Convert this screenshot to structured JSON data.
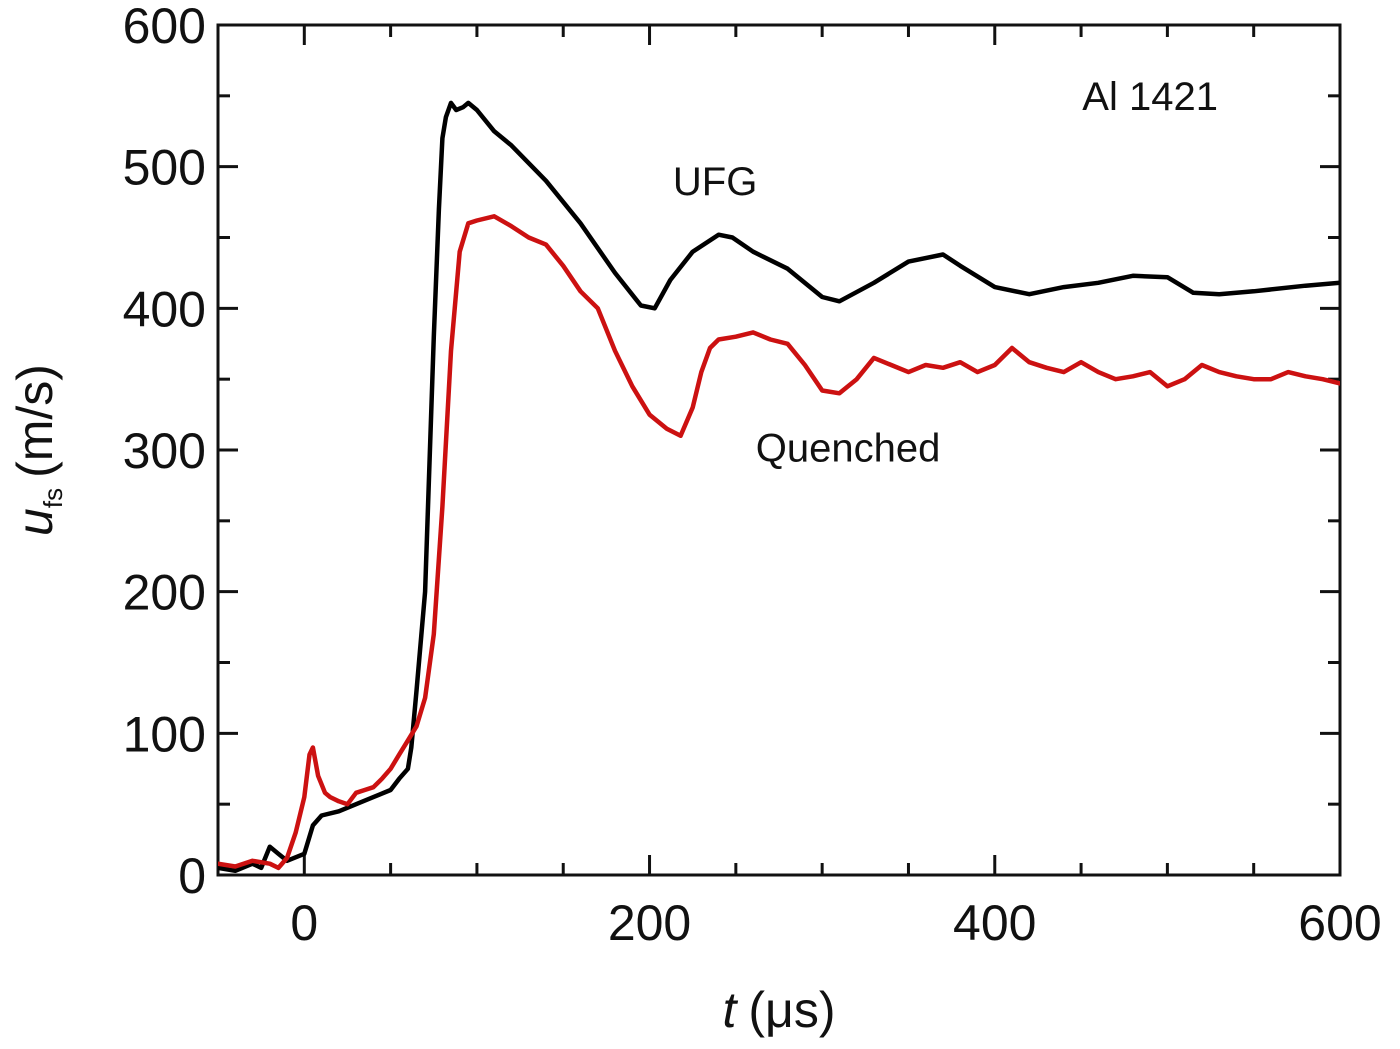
{
  "chart_data": {
    "type": "line",
    "title": "",
    "xlabel": "t",
    "xlabel_unit": "(μs)",
    "ylabel": "u",
    "ylabel_sub": "fs",
    "ylabel_unit": "(m/s)",
    "xlim": [
      -50,
      600
    ],
    "ylim": [
      0,
      600
    ],
    "x_ticks": [
      0,
      200,
      400,
      600
    ],
    "y_ticks": [
      0,
      100,
      200,
      300,
      400,
      500,
      600
    ],
    "x_minor_step": 50,
    "y_minor_step": 50,
    "grid": false,
    "annotations": [
      {
        "text": "Al 1421",
        "x": 490,
        "y": 540
      },
      {
        "text": "UFG",
        "x": 238,
        "y": 480
      },
      {
        "text": "Quenched",
        "x": 315,
        "y": 292
      }
    ],
    "series": [
      {
        "name": "UFG",
        "color": "#000000",
        "x": [
          -50,
          -40,
          -30,
          -25,
          -20,
          -15,
          -10,
          0,
          5,
          10,
          20,
          30,
          40,
          50,
          55,
          60,
          62,
          65,
          70,
          75,
          78,
          80,
          82,
          85,
          88,
          92,
          95,
          100,
          110,
          120,
          140,
          160,
          180,
          195,
          203,
          212,
          225,
          240,
          248,
          260,
          280,
          300,
          310,
          330,
          350,
          370,
          380,
          400,
          420,
          440,
          460,
          480,
          500,
          515,
          530,
          550,
          580,
          600
        ],
        "y": [
          5,
          3,
          8,
          5,
          20,
          15,
          10,
          15,
          35,
          42,
          45,
          50,
          55,
          60,
          68,
          75,
          90,
          130,
          200,
          380,
          470,
          520,
          535,
          545,
          540,
          542,
          545,
          540,
          525,
          515,
          490,
          460,
          425,
          402,
          400,
          420,
          440,
          452,
          450,
          440,
          428,
          408,
          405,
          418,
          433,
          438,
          430,
          415,
          410,
          415,
          418,
          423,
          422,
          411,
          410,
          412,
          416,
          418
        ]
      },
      {
        "name": "Quenched",
        "color": "#cc1111",
        "x": [
          -50,
          -40,
          -30,
          -20,
          -15,
          -10,
          -5,
          0,
          3,
          5,
          8,
          12,
          15,
          20,
          25,
          30,
          35,
          40,
          45,
          50,
          55,
          60,
          65,
          70,
          75,
          80,
          85,
          90,
          95,
          100,
          110,
          120,
          130,
          140,
          150,
          160,
          170,
          180,
          190,
          200,
          210,
          218,
          225,
          230,
          235,
          240,
          250,
          260,
          270,
          280,
          290,
          300,
          310,
          320,
          330,
          340,
          350,
          360,
          370,
          380,
          390,
          400,
          410,
          420,
          430,
          440,
          450,
          460,
          470,
          480,
          490,
          500,
          510,
          520,
          530,
          540,
          550,
          560,
          570,
          580,
          590,
          600
        ],
        "y": [
          8,
          6,
          10,
          8,
          5,
          12,
          30,
          55,
          85,
          90,
          70,
          58,
          55,
          52,
          50,
          58,
          60,
          62,
          68,
          75,
          85,
          95,
          105,
          125,
          170,
          260,
          370,
          440,
          460,
          462,
          465,
          458,
          450,
          445,
          430,
          412,
          400,
          370,
          345,
          325,
          315,
          310,
          330,
          355,
          372,
          378,
          380,
          383,
          378,
          375,
          360,
          342,
          340,
          350,
          365,
          360,
          355,
          360,
          358,
          362,
          355,
          360,
          372,
          362,
          358,
          355,
          362,
          355,
          350,
          352,
          355,
          345,
          350,
          360,
          355,
          352,
          350,
          350,
          355,
          352,
          350,
          347
        ]
      }
    ]
  }
}
